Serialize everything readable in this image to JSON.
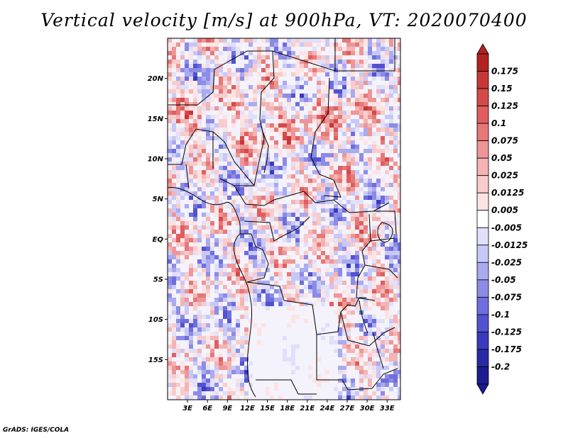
{
  "title": "Vertical velocity [m/s] at 900hPa, VT: 2020070400",
  "credit": "GrADS: IGES/COLA",
  "map": {
    "lon_range": [
      0,
      35
    ],
    "lat_range": [
      -20,
      25
    ],
    "lat_ticks": [
      "20N",
      "15N",
      "10N",
      "5N",
      "EQ",
      "5S",
      "10S",
      "15S"
    ],
    "lon_ticks": [
      "3E",
      "6E",
      "9E",
      "12E",
      "15E",
      "18E",
      "21E",
      "24E",
      "27E",
      "30E",
      "33E"
    ]
  },
  "colorbar": {
    "labels": [
      "0.175",
      "0.15",
      "0.125",
      "0.1",
      "0.075",
      "0.05",
      "0.025",
      "0.0125",
      "0.005",
      "-0.005",
      "-0.0125",
      "-0.025",
      "-0.05",
      "-0.075",
      "-0.1",
      "-0.125",
      "-0.175",
      "-0.2"
    ],
    "colors": [
      "#b22222",
      "#c83737",
      "#d44a4a",
      "#e05e5e",
      "#e67878",
      "#ee9696",
      "#f4b4b4",
      "#f8cccc",
      "#fce4e4",
      "#ffffff",
      "#e0e0fa",
      "#c8c8f6",
      "#aaaaf0",
      "#8c8ce6",
      "#6e6ede",
      "#5252d0",
      "#3a3abe",
      "#2a2aa6",
      "#1c1c90"
    ]
  }
}
